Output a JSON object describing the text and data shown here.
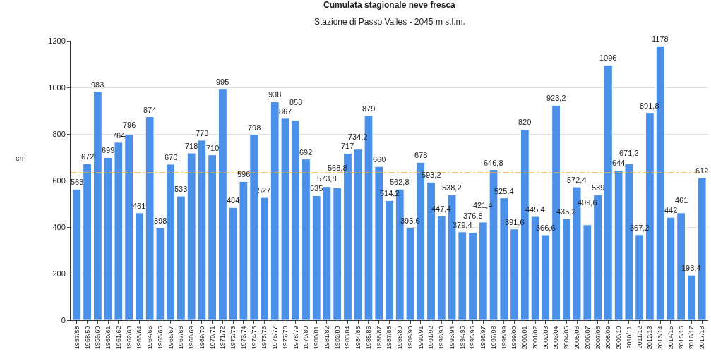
{
  "chart_data": {
    "type": "bar",
    "title": "Cumulata stagionale neve fresca",
    "subtitle": "Stazione di Passo Valles - 2045 m s.l.m.",
    "ylabel": "cm",
    "categories": [
      "1957/58",
      "1958/59",
      "1959/60",
      "1960/61",
      "1961/62",
      "1962/63",
      "1963/64",
      "1964/65",
      "1965/66",
      "1966/67",
      "1967/68",
      "1968/69",
      "1969/70",
      "1970/71",
      "1971/72",
      "1972/73",
      "1973/74",
      "1974/75",
      "1975/76",
      "1976/77",
      "1977/78",
      "1978/79",
      "1979/80",
      "1980/81",
      "1981/82",
      "1982/83",
      "1983/84",
      "1984/85",
      "1985/86",
      "1986/87",
      "1987/88",
      "1988/89",
      "1989/90",
      "1990/91",
      "1991/92",
      "1992/93",
      "1993/94",
      "1994/95",
      "1995/96",
      "1996/97",
      "1997/98",
      "1998/99",
      "1999/00",
      "2000/01",
      "2001/02",
      "2002/03",
      "2003/04",
      "2004/05",
      "2005/06",
      "2006/07",
      "2007/08",
      "2008/09",
      "2009/10",
      "2010/11",
      "2011/12",
      "2012/13",
      "2013/14",
      "2014/15",
      "2015/16",
      "2016/17",
      "2017/18"
    ],
    "values": [
      563,
      672,
      983,
      699,
      764,
      796,
      461,
      874,
      398,
      670,
      533,
      718,
      773,
      710,
      995,
      484,
      596,
      798,
      527,
      938,
      867,
      858,
      692,
      535,
      573.8,
      568.8,
      717,
      734.2,
      879,
      660,
      514.2,
      562.8,
      395.6,
      678,
      593.2,
      447.4,
      538.2,
      379.4,
      376.8,
      421.4,
      646.8,
      525.4,
      391.6,
      820,
      445.4,
      366.6,
      923.2,
      435.2,
      572.4,
      409.6,
      539,
      1096,
      644,
      671.2,
      367.2,
      891.8,
      1178,
      442,
      461,
      193.4,
      612
    ],
    "value_labels": [
      "563",
      "672",
      "983",
      "699",
      "764",
      "796",
      "461",
      "874",
      "398",
      "670",
      "533",
      "718",
      "773",
      "710",
      "995",
      "484",
      "596",
      "798",
      "527",
      "938",
      "867",
      "858",
      "692",
      "535",
      "573,8",
      "568,8",
      "717",
      "734,2",
      "879",
      "660",
      "514,2",
      "562,8",
      "395,6",
      "678",
      "593,2",
      "447,4",
      "538,2",
      "379,4",
      "376,8",
      "421,4",
      "646,8",
      "525,4",
      "391,6",
      "820",
      "445,4",
      "366,6",
      "923,2",
      "435,2",
      "572,4",
      "409,6",
      "539",
      "1096",
      "644",
      "671,2",
      "367,2",
      "891,8",
      "1178",
      "442",
      "461",
      "193,4",
      "612"
    ],
    "color": "#4a8fe8",
    "ylim": [
      0,
      1200
    ],
    "yticks": [
      0,
      200,
      400,
      600,
      800,
      1000,
      1200
    ],
    "grid": "y",
    "ref_lines": [
      {
        "axis": "y",
        "value": 634,
        "color": "#f5b041",
        "line_style": "dashed"
      }
    ]
  }
}
